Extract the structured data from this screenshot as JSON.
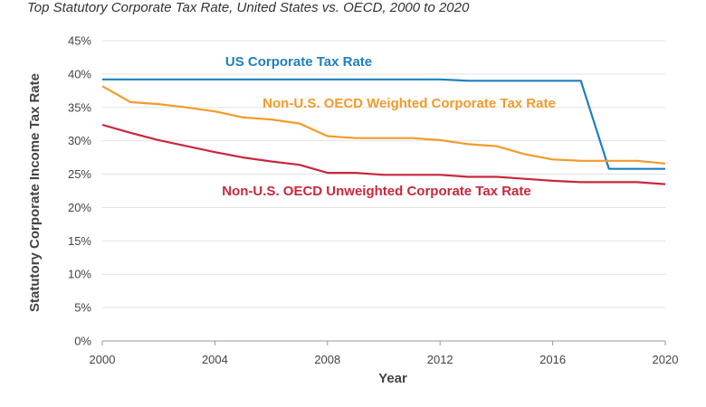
{
  "chart_data": {
    "type": "line",
    "title": "Top  Statutory Corporate Tax Rate, United States vs. OECD, 2000 to 2020",
    "xlabel": "Year",
    "ylabel": "Statutory Corporate Income Tax Rate",
    "xlim": [
      2000,
      2020
    ],
    "ylim": [
      0,
      45
    ],
    "x_ticks": [
      "2000",
      "2004",
      "2008",
      "2012",
      "2016",
      "2020"
    ],
    "y_ticks": [
      "0%",
      "5%",
      "10%",
      "15%",
      "20%",
      "25%",
      "30%",
      "35%",
      "40%",
      "45%"
    ],
    "grid": true,
    "x": [
      2000,
      2001,
      2002,
      2003,
      2004,
      2005,
      2006,
      2007,
      2008,
      2009,
      2010,
      2011,
      2012,
      2013,
      2014,
      2015,
      2016,
      2017,
      2018,
      2019,
      2020
    ],
    "series": [
      {
        "name": "US Corporate Tax Rate",
        "color": "#1f7fbf",
        "values": [
          39.2,
          39.2,
          39.2,
          39.2,
          39.2,
          39.2,
          39.2,
          39.2,
          39.2,
          39.2,
          39.2,
          39.2,
          39.2,
          39.0,
          39.0,
          39.0,
          39.0,
          39.0,
          25.8,
          25.8,
          25.8
        ]
      },
      {
        "name": "Non-U.S. OECD Weighted Corporate Tax Rate",
        "color": "#f39a2b",
        "values": [
          38.2,
          35.8,
          35.5,
          35.0,
          34.4,
          33.5,
          33.2,
          32.6,
          30.7,
          30.4,
          30.4,
          30.4,
          30.1,
          29.5,
          29.2,
          28.0,
          27.2,
          27.0,
          27.0,
          27.0,
          26.6
        ]
      },
      {
        "name": "Non-U.S. OECD Unweighted Corporate Tax Rate",
        "color": "#c8283c",
        "values": [
          32.4,
          31.2,
          30.1,
          29.2,
          28.3,
          27.5,
          26.9,
          26.4,
          25.2,
          25.2,
          24.9,
          24.9,
          24.9,
          24.6,
          24.6,
          24.3,
          24.0,
          23.8,
          23.8,
          23.8,
          23.5
        ]
      }
    ]
  }
}
